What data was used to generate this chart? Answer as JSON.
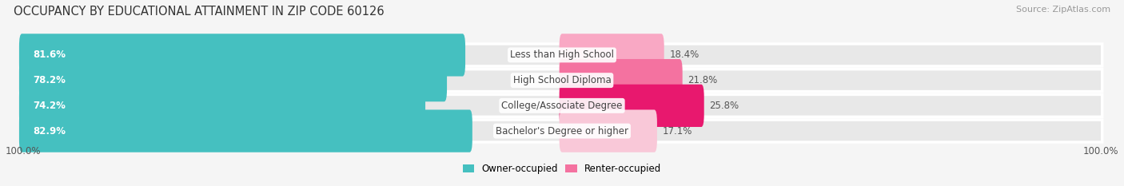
{
  "title": "OCCUPANCY BY EDUCATIONAL ATTAINMENT IN ZIP CODE 60126",
  "source": "Source: ZipAtlas.com",
  "categories": [
    "Less than High School",
    "High School Diploma",
    "College/Associate Degree",
    "Bachelor's Degree or higher"
  ],
  "owner_pct": [
    81.6,
    78.2,
    74.2,
    82.9
  ],
  "renter_pct": [
    18.4,
    21.8,
    25.8,
    17.1
  ],
  "owner_color": "#45c0c0",
  "renter_colors": [
    "#f9a8c4",
    "#f472a0",
    "#e8186e",
    "#f9c8d8"
  ],
  "row_bg_color": "#e8e8e8",
  "fig_bg_color": "#f5f5f5",
  "title_fontsize": 10.5,
  "source_fontsize": 8,
  "bar_label_fontsize": 8.5,
  "cat_label_fontsize": 8.5,
  "legend_fontsize": 8.5,
  "axis_tick_fontsize": 8.5
}
